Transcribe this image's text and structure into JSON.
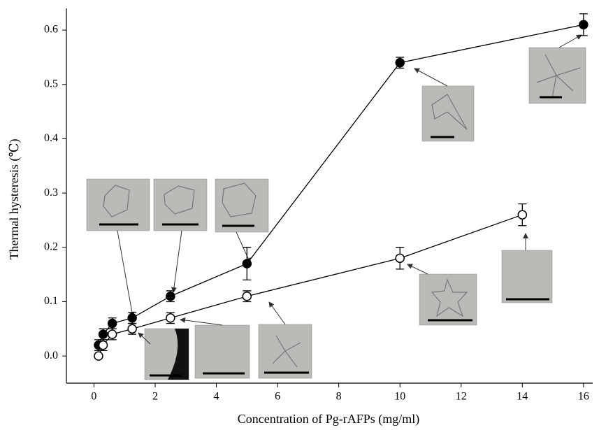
{
  "chart_data": {
    "type": "line",
    "xlabel": "Concentration of Pg-rAFPs (mg/ml)",
    "ylabel": "Thermal hysteresis (℃)",
    "xlim": [
      -0.9,
      16.3
    ],
    "ylim": [
      -0.05,
      0.64
    ],
    "xticks": [
      0,
      2,
      4,
      6,
      8,
      10,
      12,
      14,
      16
    ],
    "yticks": [
      {
        "value": 0,
        "label": "0.0"
      },
      0.1,
      0.2,
      0.3,
      0.4,
      0.5,
      0.6
    ],
    "series": [
      {
        "color": "#000000",
        "x": [
          0.15,
          0.3,
          0.6,
          1.25,
          2.5,
          5,
          10,
          16
        ],
        "values": [
          0.02,
          0.04,
          0.06,
          0.07,
          0.11,
          0.17,
          0.54,
          0.61
        ],
        "errors": [
          0.01,
          0.01,
          0.01,
          0.01,
          0.01,
          0.03,
          0.01,
          0.02
        ]
      },
      {
        "color": "#ffffff",
        "x": [
          0.15,
          0.3,
          0.6,
          1.25,
          2.5,
          5,
          10,
          14
        ],
        "values": [
          0.0,
          0.02,
          0.04,
          0.05,
          0.07,
          0.11,
          0.18,
          0.26
        ],
        "errors": [
          0,
          0.01,
          0.01,
          0.01,
          0.01,
          0.01,
          0.02,
          0.02
        ]
      }
    ]
  }
}
